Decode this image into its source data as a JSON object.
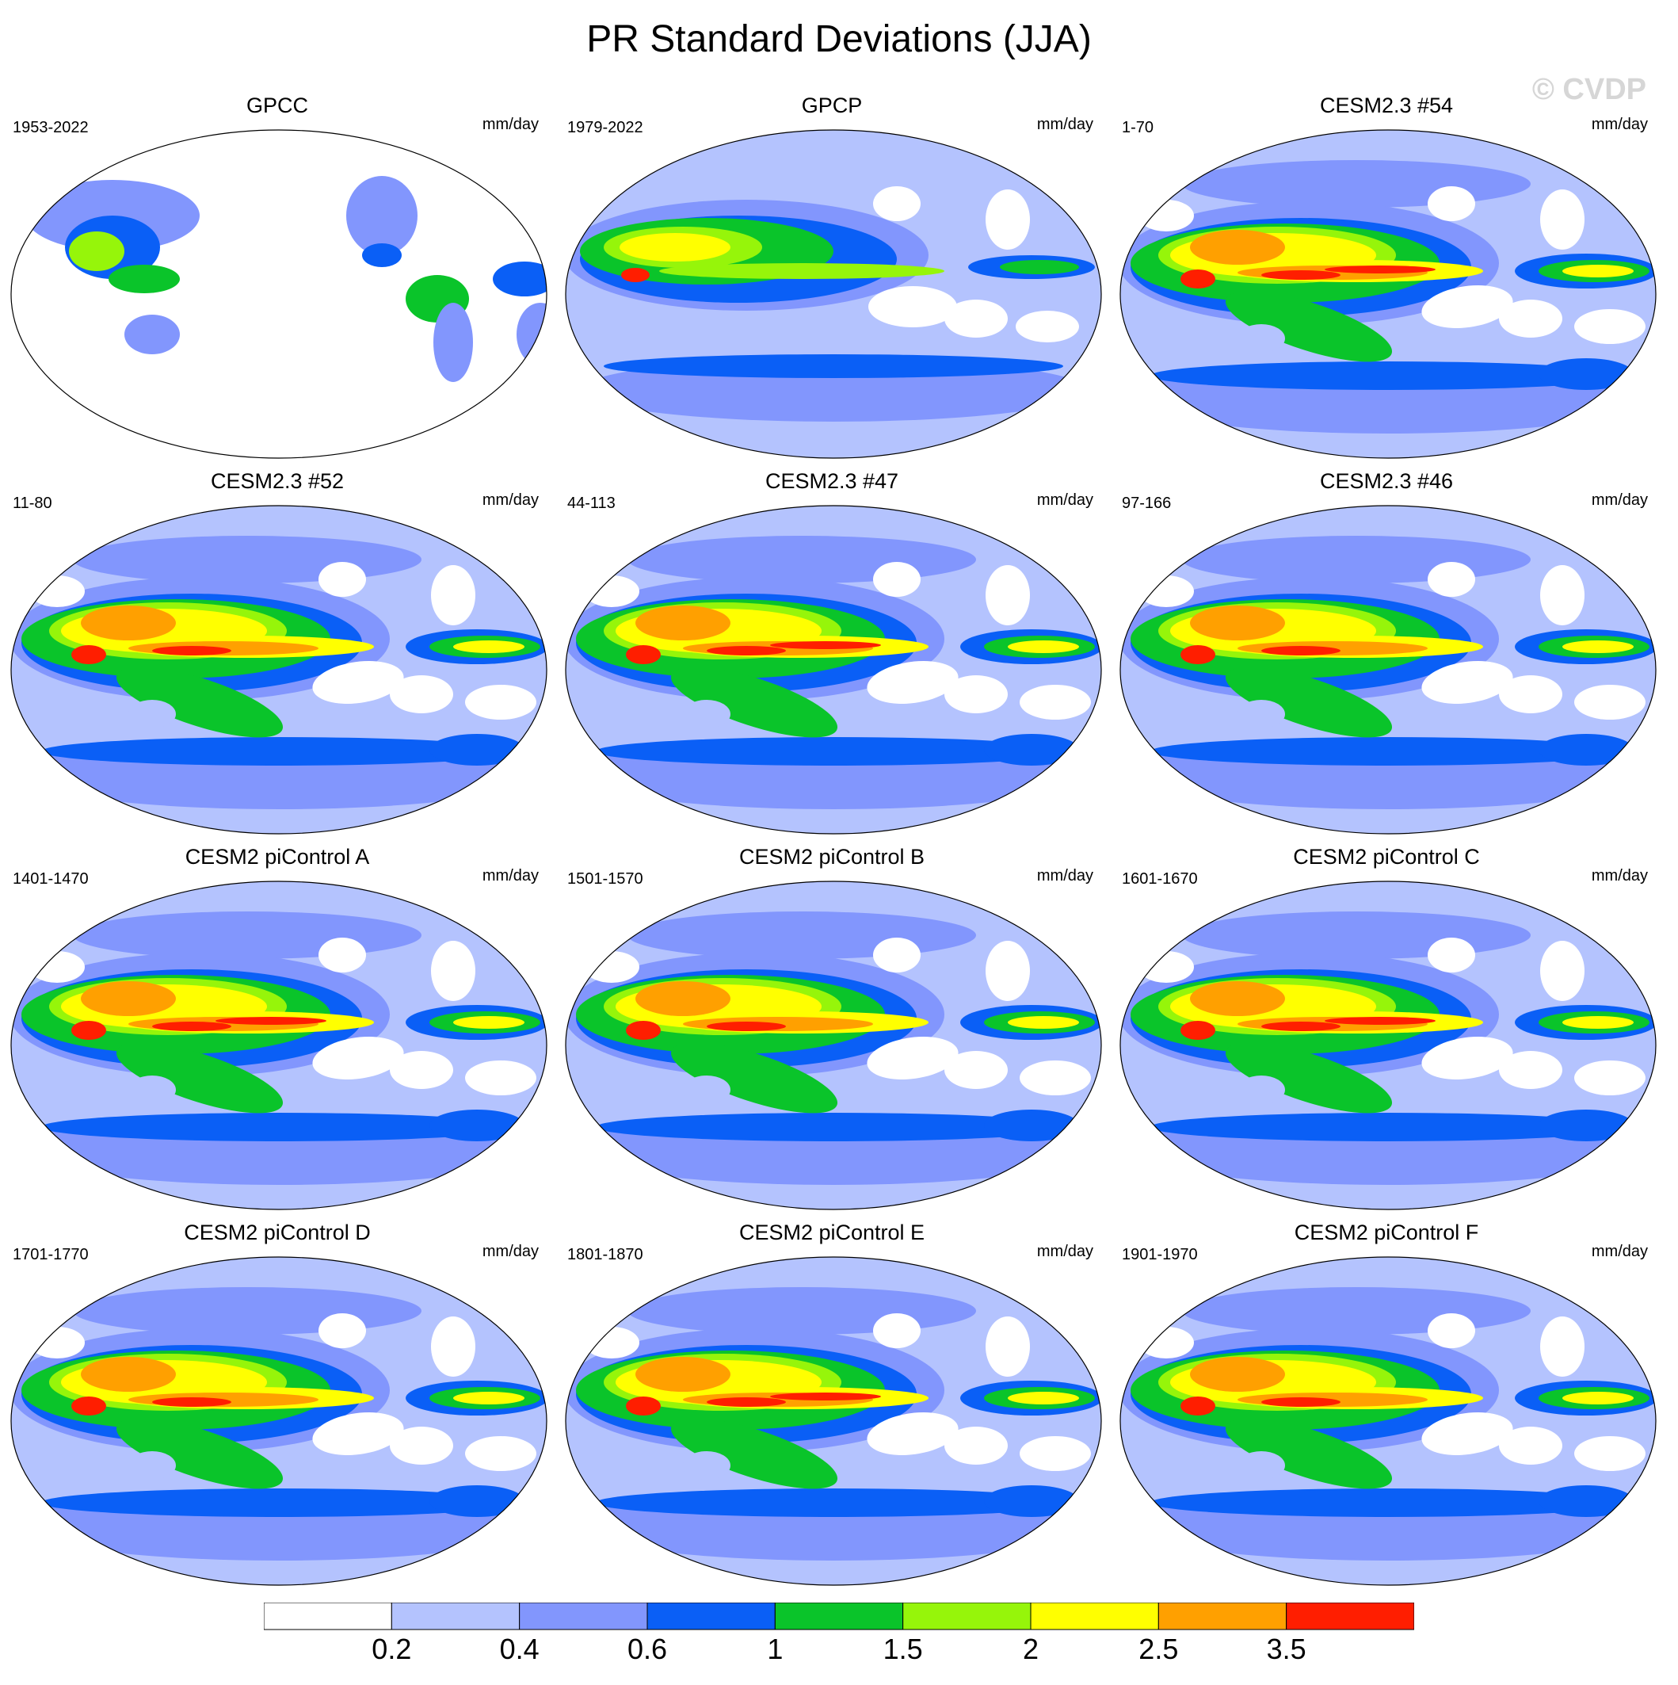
{
  "figure": {
    "title": "PR Standard Deviations (JJA)",
    "watermark": "© CVDP"
  },
  "panels": [
    {
      "title": "GPCC",
      "period": "1953-2022",
      "units": "mm/day",
      "variant": "land"
    },
    {
      "title": "GPCP",
      "period": "1979-2022",
      "units": "mm/day",
      "variant": "obs"
    },
    {
      "title": "CESM2.3 #54",
      "period": "1-70",
      "units": "mm/day",
      "variant": "model"
    },
    {
      "title": "CESM2.3 #52",
      "period": "11-80",
      "units": "mm/day",
      "variant": "model"
    },
    {
      "title": "CESM2.3 #47",
      "period": "44-113",
      "units": "mm/day",
      "variant": "model"
    },
    {
      "title": "CESM2.3 #46",
      "period": "97-166",
      "units": "mm/day",
      "variant": "model"
    },
    {
      "title": "CESM2 piControl A",
      "period": "1401-1470",
      "units": "mm/day",
      "variant": "model"
    },
    {
      "title": "CESM2 piControl B",
      "period": "1501-1570",
      "units": "mm/day",
      "variant": "model"
    },
    {
      "title": "CESM2 piControl C",
      "period": "1601-1670",
      "units": "mm/day",
      "variant": "model"
    },
    {
      "title": "CESM2 piControl D",
      "period": "1701-1770",
      "units": "mm/day",
      "variant": "model"
    },
    {
      "title": "CESM2 piControl E",
      "period": "1801-1870",
      "units": "mm/day",
      "variant": "model"
    },
    {
      "title": "CESM2 piControl F",
      "period": "1901-1970",
      "units": "mm/day",
      "variant": "model"
    }
  ],
  "colorbar": {
    "labels": [
      "0.2",
      "0.4",
      "0.6",
      "1",
      "1.5",
      "2",
      "2.5",
      "3.5"
    ],
    "colors": [
      "#ffffff",
      "#b4c3fe",
      "#8296fd",
      "#0a5ff6",
      "#0ac42a",
      "#96f50a",
      "#ffff00",
      "#ffa000",
      "#ff1e00"
    ]
  }
}
